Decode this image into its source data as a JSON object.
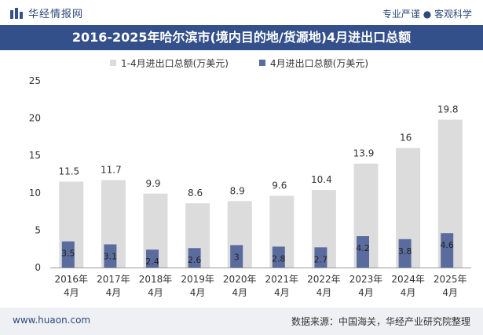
{
  "header": {
    "site_name": "华经情报网",
    "slogan": "专业严谨 ● 客观科学"
  },
  "footer": {
    "url": "www.huaon.com",
    "source": "数据来源：中国海关，华经产业研究院整理"
  },
  "colors": {
    "title_bg": "#34508a",
    "series1": "#dcdcdc",
    "series2": "#5a6b9e"
  },
  "chart_data": {
    "type": "bar",
    "title": "2016-2025年哈尔滨市(境内目的地/货源地)4月进出口总额",
    "categories": [
      [
        "2016年",
        "4月"
      ],
      [
        "2017年",
        "4月"
      ],
      [
        "2018年",
        "4月"
      ],
      [
        "2019年",
        "4月"
      ],
      [
        "2020年",
        "4月"
      ],
      [
        "2021年",
        "4月"
      ],
      [
        "2022年",
        "4月"
      ],
      [
        "2023年",
        "4月"
      ],
      [
        "2024年",
        "4月"
      ],
      [
        "2025年",
        "4月"
      ]
    ],
    "series": [
      {
        "name": "1-4月进出口总额(万美元)",
        "values": [
          11.5,
          11.7,
          9.9,
          8.6,
          8.9,
          9.6,
          10.4,
          13.9,
          16,
          19.8
        ],
        "labels": [
          "11.5",
          "11.7",
          "9.9",
          "8.6",
          "8.9",
          "9.6",
          "10.4",
          "13.9",
          "16",
          "19.8"
        ]
      },
      {
        "name": "4月进出口总额(万美元)",
        "values": [
          3.5,
          3.1,
          2.4,
          2.6,
          3,
          2.8,
          2.7,
          4.2,
          3.8,
          4.6
        ],
        "labels": [
          "3.5",
          "3.1",
          "2.4",
          "2.6",
          "3",
          "2.8",
          "2.7",
          "4.2",
          "3.8",
          "4.6"
        ]
      }
    ],
    "ylim": [
      0,
      25
    ],
    "yticks": [
      "0",
      "5",
      "10",
      "15",
      "20",
      "25"
    ],
    "legend_position": "top-center",
    "grid": false
  }
}
